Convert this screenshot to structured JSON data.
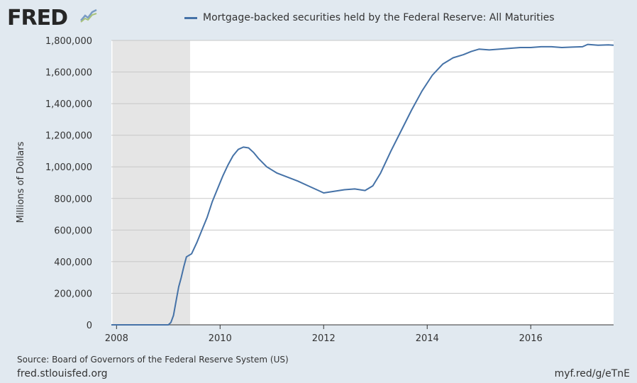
{
  "brand": {
    "logo_text": "FRED",
    "logo_icon": "chart-line-icon",
    "site": "fred.stlouisfed.org",
    "short_link": "myf.red/g/eTnE"
  },
  "source": "Source: Board of Governors of the Federal Reserve System (US)",
  "colors": {
    "line": "#4572a7",
    "recession": "#e5e5e5",
    "background": "#e1e9f0",
    "plot_bg": "#ffffff",
    "grid": "#c8c8c8"
  },
  "chart_data": {
    "type": "line",
    "ylabel": "Millions of Dollars",
    "xlim": [
      2007.9,
      2017.6
    ],
    "ylim": [
      0,
      1800000
    ],
    "grid": true,
    "legend_position": "top",
    "x_ticks": [
      2008,
      2010,
      2012,
      2014,
      2016
    ],
    "x_tick_labels": [
      "2008",
      "2010",
      "2012",
      "2014",
      "2016"
    ],
    "y_ticks": [
      0,
      200000,
      400000,
      600000,
      800000,
      1000000,
      1200000,
      1400000,
      1600000,
      1800000
    ],
    "y_tick_labels": [
      "0",
      "200,000",
      "400,000",
      "600,000",
      "800,000",
      "1,000,000",
      "1,200,000",
      "1,400,000",
      "1,600,000",
      "1,800,000"
    ],
    "recession_shading": [
      {
        "start": 2007.92,
        "end": 2009.42
      }
    ],
    "series": [
      {
        "name": "Mortgage-backed securities held by the Federal Reserve: All Maturities",
        "x": [
          2007.9,
          2009.0,
          2009.05,
          2009.1,
          2009.15,
          2009.2,
          2009.25,
          2009.3,
          2009.35,
          2009.45,
          2009.55,
          2009.65,
          2009.75,
          2009.85,
          2009.95,
          2010.05,
          2010.15,
          2010.25,
          2010.35,
          2010.45,
          2010.55,
          2010.65,
          2010.75,
          2010.9,
          2011.1,
          2011.3,
          2011.5,
          2011.7,
          2011.9,
          2012.0,
          2012.2,
          2012.4,
          2012.6,
          2012.8,
          2012.95,
          2013.1,
          2013.3,
          2013.5,
          2013.7,
          2013.9,
          2014.1,
          2014.3,
          2014.5,
          2014.7,
          2014.85,
          2015.0,
          2015.2,
          2015.4,
          2015.6,
          2015.8,
          2016.0,
          2016.2,
          2016.4,
          2016.6,
          2016.8,
          2017.0,
          2017.1,
          2017.3,
          2017.5,
          2017.6
        ],
        "values": [
          0,
          0,
          15000,
          60000,
          150000,
          240000,
          300000,
          370000,
          430000,
          450000,
          520000,
          600000,
          680000,
          780000,
          860000,
          940000,
          1010000,
          1070000,
          1110000,
          1125000,
          1120000,
          1090000,
          1050000,
          1000000,
          960000,
          935000,
          910000,
          880000,
          850000,
          835000,
          845000,
          855000,
          860000,
          850000,
          880000,
          960000,
          1100000,
          1230000,
          1360000,
          1480000,
          1580000,
          1650000,
          1690000,
          1710000,
          1730000,
          1745000,
          1740000,
          1745000,
          1750000,
          1755000,
          1755000,
          1760000,
          1760000,
          1755000,
          1758000,
          1760000,
          1775000,
          1770000,
          1772000,
          1770000
        ]
      }
    ]
  }
}
